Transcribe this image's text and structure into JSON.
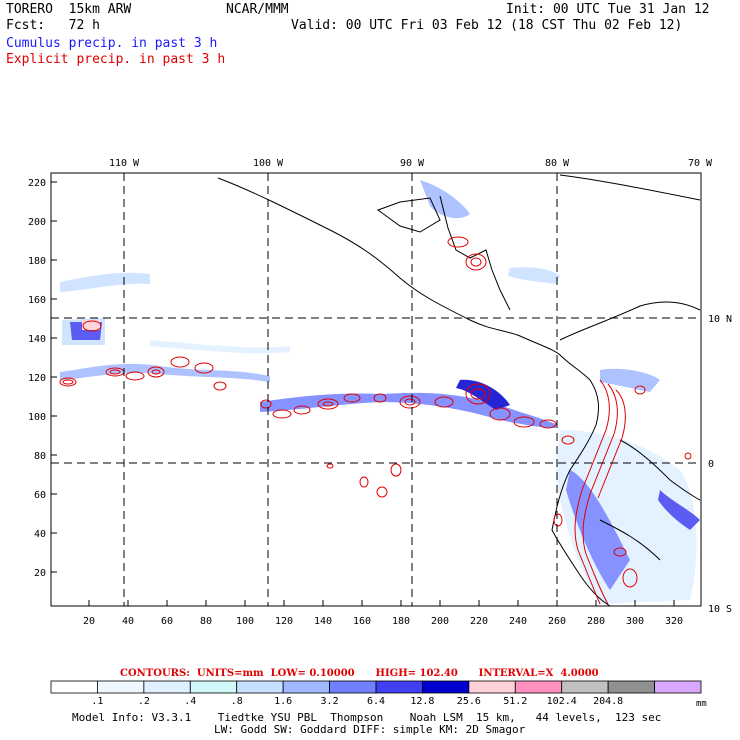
{
  "header": {
    "model": "TORERO  15km ARW",
    "org": "NCAR/MMM",
    "init": "Init: 00 UTC Tue 31 Jan 12",
    "fcst": "Fcst:   72 h",
    "valid": "Valid: 00 UTC Fri 03 Feb 12 (18 CST Thu 02 Feb 12)",
    "field1": "Cumulus precip. in past 3 h",
    "field2": "Explicit precip. in past 3 h"
  },
  "map": {
    "lon_labels": [
      "110 W",
      "100 W",
      "90 W",
      "80 W",
      "70 W"
    ],
    "lat_labels": [
      "10 N",
      "0",
      "10 S"
    ],
    "y_ticks": [
      "220",
      "200",
      "180",
      "160",
      "140",
      "120",
      "100",
      "80",
      "60",
      "40",
      "20"
    ],
    "x_ticks": [
      "20",
      "40",
      "60",
      "80",
      "100",
      "120",
      "140",
      "160",
      "180",
      "200",
      "220",
      "240",
      "260",
      "280",
      "300",
      "320"
    ]
  },
  "contours_note": "CONTOURS:  UNITS=mm  LOW= 0.10000      HIGH= 102.40      INTERVAL=X  4.0000",
  "colorbar": {
    "labels": [
      ".1",
      ".2",
      ".4",
      ".8",
      "1.6",
      "3.2",
      "6.4",
      "12.8",
      "25.6",
      "51.2",
      "102.4",
      "204.8"
    ],
    "unit": "mm",
    "colors": [
      "#ffffff",
      "#f0f8ff",
      "#e0f0ff",
      "#d0f8f8",
      "#c8e0ff",
      "#a0b8ff",
      "#7080ff",
      "#4040f0",
      "#0000d0",
      "#ffd0d8",
      "#ff90c0",
      "#c0c0c0",
      "#909090",
      "#d8a8ff"
    ]
  },
  "footer": {
    "line1": "Model Info: V3.3.1    Tiedtke YSU PBL  Thompson    Noah LSM  15 km,   44 levels,  123 sec",
    "line2": "LW: Godd SW: Goddard DIFF: simple KM: 2D Smagor"
  }
}
